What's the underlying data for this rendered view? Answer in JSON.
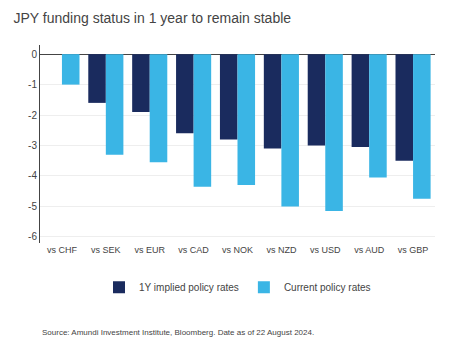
{
  "chart_data": {
    "type": "bar",
    "title": "JPY funding status in 1 year to remain stable",
    "categories": [
      "vs CHF",
      "vs SEK",
      "vs EUR",
      "vs CAD",
      "vs NOK",
      "vs NZD",
      "vs USD",
      "vs AUD",
      "vs GBP"
    ],
    "series": [
      {
        "name": "1Y implied policy rates",
        "color": "#1a2b5e",
        "values": [
          0.0,
          -1.6,
          -1.9,
          -2.6,
          -2.8,
          -3.1,
          -3.0,
          -3.05,
          -3.5
        ]
      },
      {
        "name": "Current policy rates",
        "color": "#3ab5e5",
        "values": [
          -1.0,
          -3.3,
          -3.55,
          -4.35,
          -4.3,
          -5.0,
          -5.15,
          -4.05,
          -4.75
        ]
      }
    ],
    "ylim": [
      -6.2,
      0.3
    ],
    "yticks": [
      0,
      -1,
      -2,
      -3,
      -4,
      -5,
      -6
    ],
    "grid": true,
    "legend": "bottom",
    "annotations": [
      "Source: Amundi Investment Institute, Bloomberg. Date as of 22 August 2024."
    ]
  }
}
